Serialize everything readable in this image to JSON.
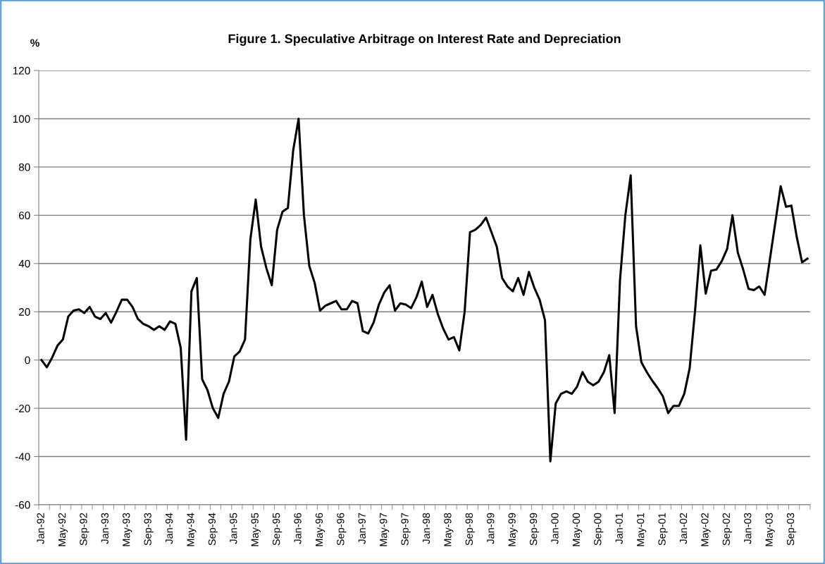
{
  "chart_data": {
    "type": "line",
    "title": "Figure 1. Speculative Arbitrage on Interest Rate and Depreciation",
    "ylabel": "%",
    "categories": [
      "Jan-92",
      null,
      null,
      null,
      "May-92",
      null,
      null,
      null,
      "Sep-92",
      null,
      null,
      null,
      "Jan-93",
      null,
      null,
      null,
      "May-93",
      null,
      null,
      null,
      "Sep-93",
      null,
      null,
      null,
      "Jan-94",
      null,
      null,
      null,
      "May-94",
      null,
      null,
      null,
      "Sep-94",
      null,
      null,
      null,
      "Jan-95",
      null,
      null,
      null,
      "May-95",
      null,
      null,
      null,
      "Sep-95",
      null,
      null,
      null,
      "Jan-96",
      null,
      null,
      null,
      "May-96",
      null,
      null,
      null,
      "Sep-96",
      null,
      null,
      null,
      "Jan-97",
      null,
      null,
      null,
      "May-97",
      null,
      null,
      null,
      "Sep-97",
      null,
      null,
      null,
      "Jan-98",
      null,
      null,
      null,
      "May-98",
      null,
      null,
      null,
      "Sep-98",
      null,
      null,
      null,
      "Jan-99",
      null,
      null,
      null,
      "May-99",
      null,
      null,
      null,
      "Sep-99",
      null,
      null,
      null,
      "Jan-00",
      null,
      null,
      null,
      "May-00",
      null,
      null,
      null,
      "Sep-00",
      null,
      null,
      null,
      "Jan-01",
      null,
      null,
      null,
      "May-01",
      null,
      null,
      null,
      "Sep-01",
      null,
      null,
      null,
      "Jan-02",
      null,
      null,
      null,
      "May-02",
      null,
      null,
      null,
      "Sep-02",
      null,
      null,
      null,
      "Jan-03",
      null,
      null,
      null,
      "May-03",
      null,
      null,
      null,
      "Sep-03",
      null,
      null,
      null
    ],
    "series": [
      {
        "color": "#000000",
        "values": [
          0,
          -3,
          1,
          6,
          8.5,
          18,
          20.5,
          21,
          19.5,
          22,
          18,
          17,
          19.5,
          15.5,
          20,
          25,
          25,
          22,
          17,
          15,
          14,
          12.5,
          14,
          12.5,
          16,
          15,
          5,
          -33,
          28.5,
          34,
          -8,
          -12.5,
          -20,
          -24,
          -14,
          -9,
          1.5,
          3.5,
          8.5,
          50,
          66.5,
          47,
          38,
          31,
          54,
          61.5,
          63,
          87,
          100,
          60,
          39,
          32,
          20.5,
          22.5,
          23.5,
          24.5,
          21,
          21,
          24.5,
          23.5,
          12,
          11,
          15.5,
          23,
          28,
          31,
          20.5,
          23.5,
          23,
          21.5,
          26,
          32.5,
          22,
          27,
          19,
          13,
          8.5,
          9.5,
          4,
          20,
          53,
          54,
          56,
          59,
          53,
          47,
          34,
          30.5,
          28.5,
          34,
          27,
          36.5,
          30,
          25,
          16.5,
          -42,
          -18,
          -14,
          -13,
          -14,
          -11,
          -5,
          -9,
          -10.5,
          -9,
          -5,
          2,
          -22,
          33,
          60,
          76.5,
          14,
          -1,
          -5,
          -8.5,
          -11.5,
          -15,
          -22,
          -19,
          -19,
          -14,
          -3.5,
          20,
          47.5,
          27.5,
          37,
          37.5,
          41,
          46,
          60,
          44.5,
          37.5,
          29.5,
          29,
          30.5,
          27,
          42,
          57,
          72,
          63.5,
          64,
          51,
          40.5,
          42
        ]
      }
    ],
    "ylim": [
      -60,
      120
    ],
    "yticks": [
      -60,
      -40,
      -20,
      0,
      20,
      40,
      60,
      80,
      100,
      120
    ],
    "grid": "y",
    "legend": false,
    "marker": "none",
    "line_style": "solid"
  }
}
